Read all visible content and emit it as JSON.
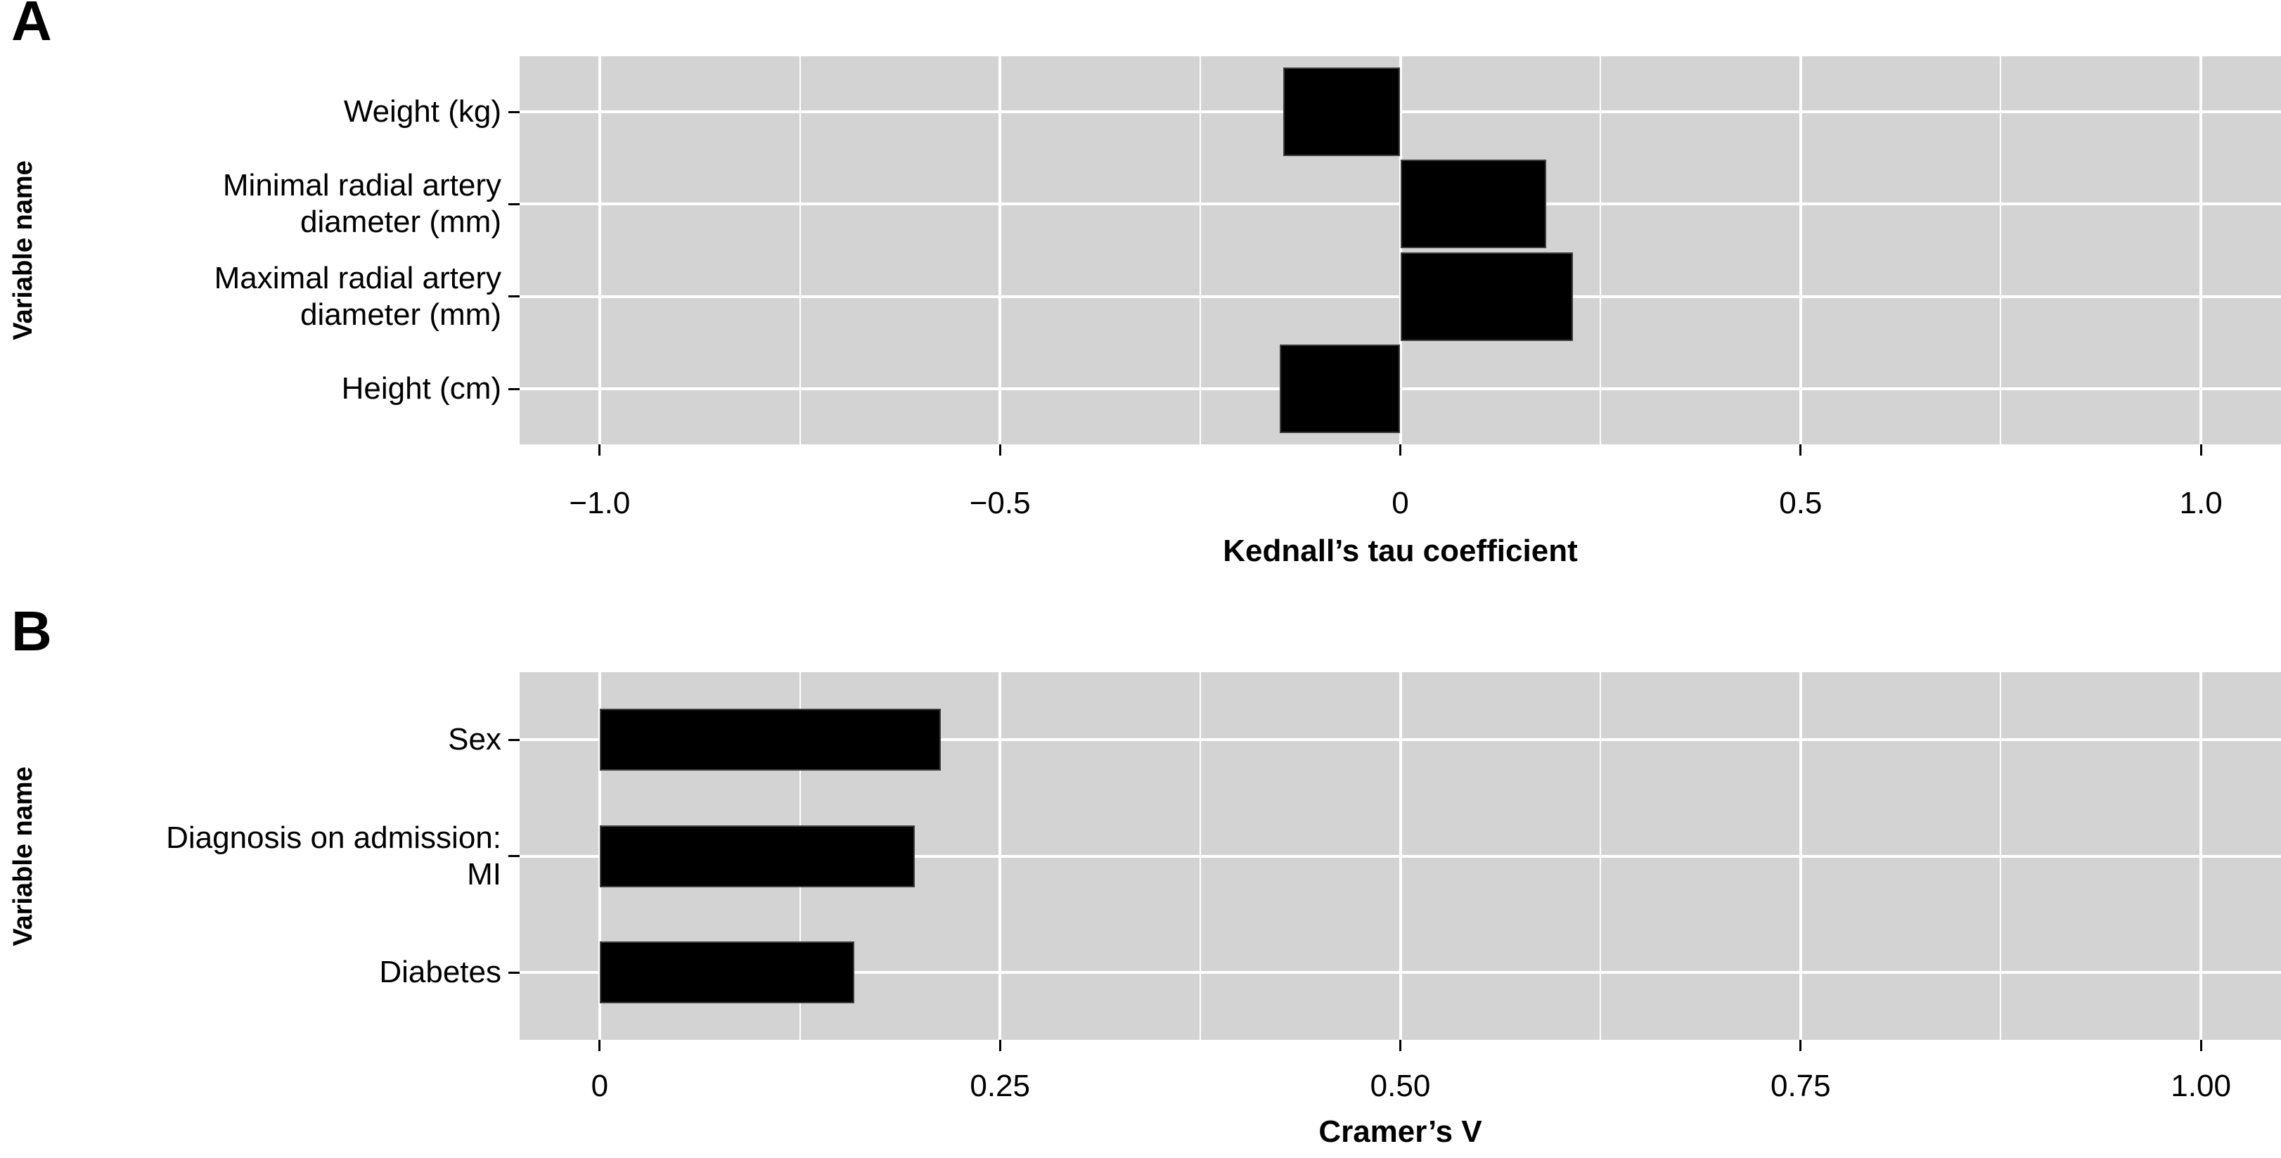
{
  "figure_title": "",
  "colors": {
    "panel_background": "#d3d3d3",
    "bar_fill": "#000000",
    "bar_border": "#3d3d3d",
    "gridline": "#ffffff",
    "text": "#000000",
    "page_background": "#ffffff"
  },
  "chart_data": [
    {
      "panel_label": "A",
      "type": "bar",
      "orientation": "horizontal",
      "title": "",
      "xlabel": "Kednall’s tau coefficient",
      "ylabel": "Variable name",
      "categories": [
        "Weight (kg)",
        "Minimal radial artery\ndiameter (mm)",
        "Maximal radial artery\ndiameter (mm)",
        "Height (cm)"
      ],
      "values": [
        -0.146,
        0.182,
        0.216,
        -0.151
      ],
      "xlim": [
        -1.1,
        1.1
      ],
      "x_ticks": [
        {
          "v": -1.0,
          "label": "−1.0"
        },
        {
          "v": -0.5,
          "label": "−0.5"
        },
        {
          "v": 0,
          "label": "0"
        },
        {
          "v": 0.5,
          "label": "0.5"
        },
        {
          "v": 1.0,
          "label": "1.0"
        }
      ],
      "grid": "vertical major at ticks + minor at midpoints; horizontal major at category centers",
      "legend": false
    },
    {
      "panel_label": "B",
      "type": "bar",
      "orientation": "horizontal",
      "title": "",
      "xlabel": "Cramer’s V",
      "ylabel": "Variable name",
      "categories": [
        "Sex",
        "Diagnosis on admission:\nMI",
        "Diabetes"
      ],
      "values": [
        0.213,
        0.197,
        0.159
      ],
      "xlim": [
        -0.05,
        1.05
      ],
      "x_ticks": [
        {
          "v": 0,
          "label": "0"
        },
        {
          "v": 0.25,
          "label": "0.25"
        },
        {
          "v": 0.5,
          "label": "0.50"
        },
        {
          "v": 0.75,
          "label": "0.75"
        },
        {
          "v": 1.0,
          "label": "1.00"
        }
      ],
      "grid": "vertical major at ticks + minor at midpoints; horizontal major at category centers",
      "legend": false
    }
  ]
}
